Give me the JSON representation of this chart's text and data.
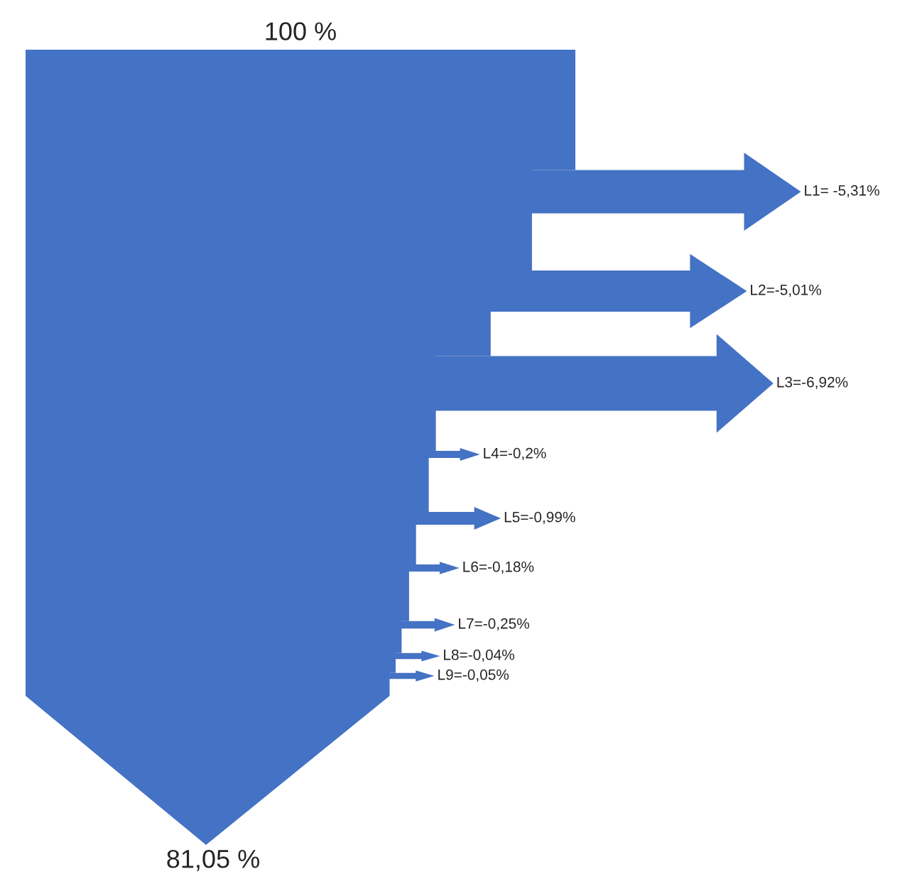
{
  "chart_data": {
    "type": "other",
    "color": "#4472c4",
    "categories": [
      null,
      null,
      null,
      null,
      null,
      null,
      null,
      null,
      null
    ],
    "values": [
      -5.31,
      -5.01,
      -6.92,
      -0.2,
      -0.99,
      -0.18,
      -0.25,
      -0.04,
      -0.05
    ],
    "value_labels": [
      "L1= -5,31%",
      "L2=-5,01%",
      "L3=-6,92%",
      "L4=-0,2%",
      "L5=-0,99%",
      "L6=-0,18%",
      "L7=-0,25%",
      "L8=-0,04%",
      "L9=-0,05%"
    ],
    "annotations": [
      "100 %",
      "81,05 %"
    ]
  }
}
